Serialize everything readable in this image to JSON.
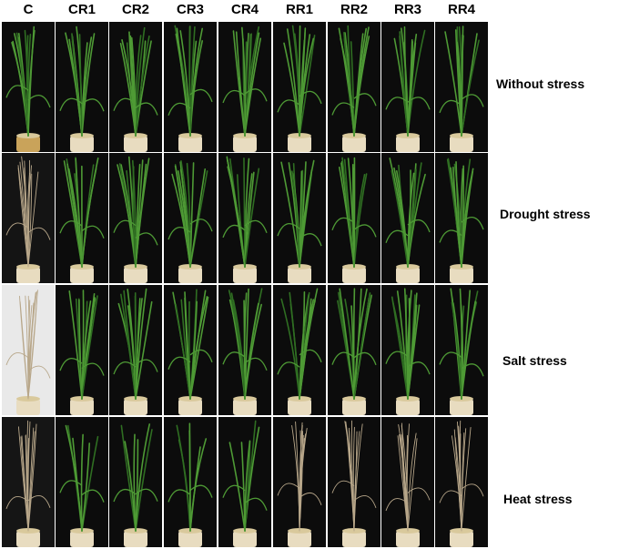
{
  "columns": [
    "C",
    "CR1",
    "CR2",
    "CR3",
    "CR4",
    "RR1",
    "RR2",
    "RR3",
    "RR4"
  ],
  "rows": [
    "Without stress",
    "Drought stress",
    "Salt stress",
    "Heat  stress"
  ],
  "colors": {
    "background_panel": "#0a0a0a",
    "leaf_green": "#4e9a35",
    "leaf_dark_green": "#2f6e22",
    "dry_straw": "#b8a78a",
    "pot": "#e8dcc0"
  }
}
